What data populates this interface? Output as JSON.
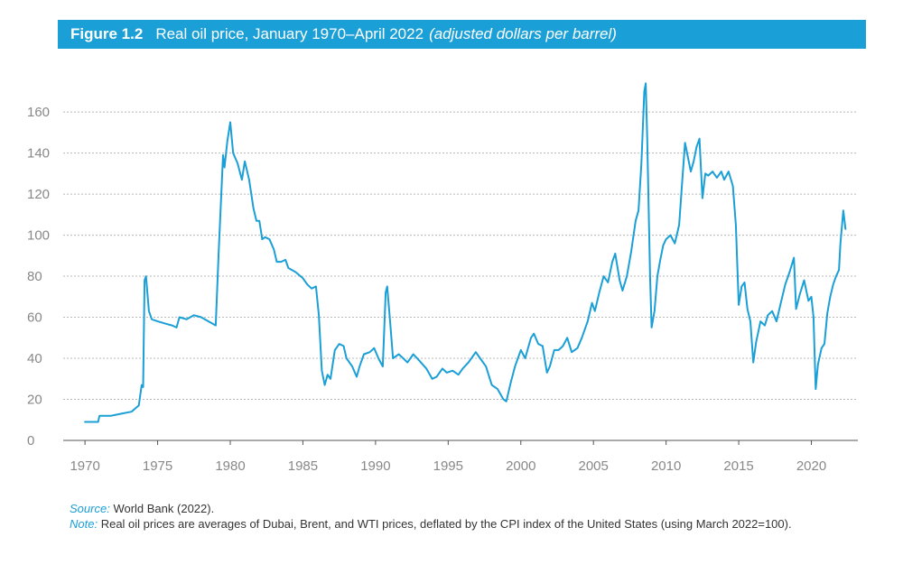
{
  "header": {
    "figure_number": "Figure 1.2",
    "title": "Real oil price, January 1970–April 2022",
    "subtitle": "(adjusted dollars per barrel)"
  },
  "footer": {
    "source_label": "Source:",
    "source_text": "World Bank (2022).",
    "note_label": "Note:",
    "note_text": "Real oil prices are averages of Dubai, Brent, and WTI prices, deflated by the CPI index of the United States (using March 2022=100)."
  },
  "colors": {
    "accent": "#1a9fd6",
    "line": "#1a9fd6",
    "grid": "#b8b8b8"
  },
  "chart_data": {
    "type": "line",
    "title": "Real oil price, January 1970–April 2022",
    "xlabel": "",
    "ylabel": "",
    "xlim": [
      1968.5,
      2023.2
    ],
    "ylim": [
      0,
      175
    ],
    "xticks": [
      1970,
      1975,
      1980,
      1985,
      1990,
      1995,
      2000,
      2005,
      2010,
      2015,
      2020
    ],
    "yticks": [
      0,
      20,
      40,
      60,
      80,
      100,
      120,
      140,
      160
    ],
    "grid": true,
    "legend": "none",
    "series": [
      {
        "name": "",
        "points": [
          [
            1970.0,
            9
          ],
          [
            1970.9,
            9
          ],
          [
            1971.0,
            12
          ],
          [
            1971.8,
            12
          ],
          [
            1972.5,
            13
          ],
          [
            1973.2,
            14
          ],
          [
            1973.7,
            17
          ],
          [
            1973.9,
            27
          ],
          [
            1974.0,
            26
          ],
          [
            1974.1,
            78
          ],
          [
            1974.2,
            80
          ],
          [
            1974.4,
            63
          ],
          [
            1974.6,
            59
          ],
          [
            1975.0,
            58
          ],
          [
            1975.5,
            57
          ],
          [
            1976.0,
            56
          ],
          [
            1976.3,
            55
          ],
          [
            1976.5,
            60
          ],
          [
            1977.0,
            59
          ],
          [
            1977.5,
            61
          ],
          [
            1978.0,
            60
          ],
          [
            1978.5,
            58
          ],
          [
            1979.0,
            56
          ],
          [
            1979.2,
            91
          ],
          [
            1979.5,
            139
          ],
          [
            1979.6,
            133
          ],
          [
            1979.8,
            146
          ],
          [
            1980.0,
            155
          ],
          [
            1980.2,
            140
          ],
          [
            1980.5,
            135
          ],
          [
            1980.8,
            127
          ],
          [
            1981.0,
            136
          ],
          [
            1981.3,
            127
          ],
          [
            1981.6,
            113
          ],
          [
            1981.8,
            107
          ],
          [
            1982.0,
            107
          ],
          [
            1982.2,
            98
          ],
          [
            1982.4,
            99
          ],
          [
            1982.7,
            98
          ],
          [
            1983.0,
            93
          ],
          [
            1983.2,
            87
          ],
          [
            1983.5,
            87
          ],
          [
            1983.8,
            88
          ],
          [
            1984.0,
            84
          ],
          [
            1984.5,
            82
          ],
          [
            1985.0,
            79
          ],
          [
            1985.3,
            76
          ],
          [
            1985.6,
            74
          ],
          [
            1985.9,
            75
          ],
          [
            1986.1,
            61
          ],
          [
            1986.3,
            34
          ],
          [
            1986.5,
            27
          ],
          [
            1986.7,
            32
          ],
          [
            1986.9,
            30
          ],
          [
            1987.2,
            44
          ],
          [
            1987.5,
            47
          ],
          [
            1987.8,
            46
          ],
          [
            1988.0,
            40
          ],
          [
            1988.4,
            36
          ],
          [
            1988.7,
            31
          ],
          [
            1988.9,
            36
          ],
          [
            1989.2,
            42
          ],
          [
            1989.6,
            43
          ],
          [
            1989.9,
            45
          ],
          [
            1990.2,
            40
          ],
          [
            1990.5,
            36
          ],
          [
            1990.7,
            72
          ],
          [
            1990.8,
            75
          ],
          [
            1991.0,
            58
          ],
          [
            1991.2,
            40
          ],
          [
            1991.6,
            42
          ],
          [
            1991.9,
            40
          ],
          [
            1992.2,
            38
          ],
          [
            1992.6,
            42
          ],
          [
            1993.0,
            39
          ],
          [
            1993.5,
            35
          ],
          [
            1993.9,
            30
          ],
          [
            1994.2,
            31
          ],
          [
            1994.6,
            35
          ],
          [
            1994.9,
            33
          ],
          [
            1995.3,
            34
          ],
          [
            1995.7,
            32
          ],
          [
            1996.0,
            35
          ],
          [
            1996.4,
            38
          ],
          [
            1996.9,
            43
          ],
          [
            1997.2,
            40
          ],
          [
            1997.6,
            36
          ],
          [
            1998.0,
            27
          ],
          [
            1998.4,
            25
          ],
          [
            1998.8,
            20
          ],
          [
            1999.0,
            19
          ],
          [
            1999.3,
            28
          ],
          [
            1999.6,
            36
          ],
          [
            2000.0,
            44
          ],
          [
            2000.3,
            40
          ],
          [
            2000.7,
            50
          ],
          [
            2000.9,
            52
          ],
          [
            2001.2,
            47
          ],
          [
            2001.5,
            46
          ],
          [
            2001.8,
            33
          ],
          [
            2002.0,
            36
          ],
          [
            2002.3,
            44
          ],
          [
            2002.6,
            44
          ],
          [
            2002.9,
            46
          ],
          [
            2003.2,
            50
          ],
          [
            2003.5,
            43
          ],
          [
            2003.9,
            45
          ],
          [
            2004.2,
            50
          ],
          [
            2004.6,
            58
          ],
          [
            2004.9,
            67
          ],
          [
            2005.1,
            63
          ],
          [
            2005.4,
            72
          ],
          [
            2005.7,
            80
          ],
          [
            2006.0,
            77
          ],
          [
            2006.3,
            87
          ],
          [
            2006.5,
            91
          ],
          [
            2006.8,
            78
          ],
          [
            2007.0,
            73
          ],
          [
            2007.3,
            80
          ],
          [
            2007.6,
            92
          ],
          [
            2007.9,
            107
          ],
          [
            2008.1,
            112
          ],
          [
            2008.3,
            135
          ],
          [
            2008.5,
            170
          ],
          [
            2008.6,
            174
          ],
          [
            2008.7,
            148
          ],
          [
            2008.9,
            80
          ],
          [
            2009.0,
            55
          ],
          [
            2009.2,
            63
          ],
          [
            2009.4,
            80
          ],
          [
            2009.6,
            88
          ],
          [
            2009.8,
            95
          ],
          [
            2010.0,
            98
          ],
          [
            2010.3,
            100
          ],
          [
            2010.6,
            96
          ],
          [
            2010.9,
            105
          ],
          [
            2011.1,
            125
          ],
          [
            2011.3,
            145
          ],
          [
            2011.5,
            138
          ],
          [
            2011.7,
            131
          ],
          [
            2011.9,
            136
          ],
          [
            2012.1,
            143
          ],
          [
            2012.3,
            147
          ],
          [
            2012.5,
            118
          ],
          [
            2012.7,
            130
          ],
          [
            2012.9,
            129
          ],
          [
            2013.2,
            131
          ],
          [
            2013.5,
            128
          ],
          [
            2013.8,
            131
          ],
          [
            2014.0,
            127
          ],
          [
            2014.3,
            131
          ],
          [
            2014.6,
            124
          ],
          [
            2014.8,
            105
          ],
          [
            2015.0,
            66
          ],
          [
            2015.2,
            75
          ],
          [
            2015.4,
            77
          ],
          [
            2015.6,
            64
          ],
          [
            2015.8,
            58
          ],
          [
            2016.0,
            38
          ],
          [
            2016.2,
            48
          ],
          [
            2016.5,
            58
          ],
          [
            2016.8,
            56
          ],
          [
            2017.0,
            61
          ],
          [
            2017.3,
            63
          ],
          [
            2017.6,
            58
          ],
          [
            2017.9,
            67
          ],
          [
            2018.2,
            76
          ],
          [
            2018.5,
            82
          ],
          [
            2018.8,
            89
          ],
          [
            2018.95,
            64
          ],
          [
            2019.2,
            71
          ],
          [
            2019.5,
            78
          ],
          [
            2019.8,
            68
          ],
          [
            2020.0,
            70
          ],
          [
            2020.15,
            60
          ],
          [
            2020.3,
            25
          ],
          [
            2020.45,
            37
          ],
          [
            2020.7,
            45
          ],
          [
            2020.9,
            47
          ],
          [
            2021.1,
            62
          ],
          [
            2021.3,
            70
          ],
          [
            2021.5,
            76
          ],
          [
            2021.7,
            80
          ],
          [
            2021.9,
            83
          ],
          [
            2022.0,
            96
          ],
          [
            2022.2,
            112
          ],
          [
            2022.35,
            103
          ]
        ]
      }
    ]
  }
}
